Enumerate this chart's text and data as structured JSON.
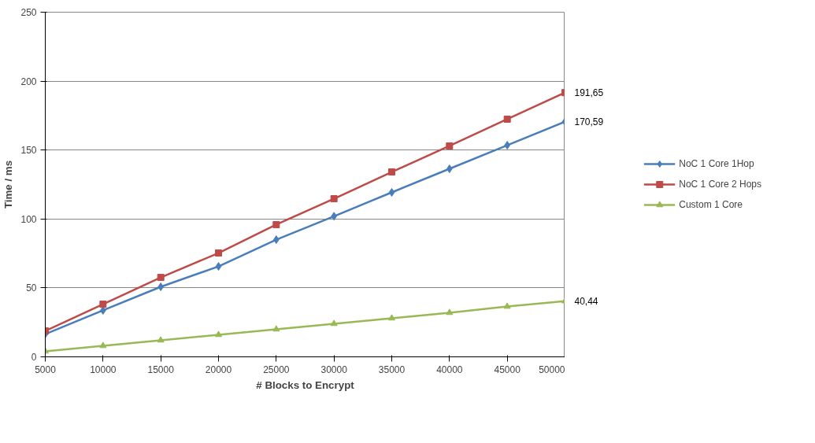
{
  "chart_data": {
    "type": "line",
    "xlabel": "# Blocks to Encrypt",
    "ylabel": "Time / ms",
    "x": [
      5000,
      10000,
      15000,
      20000,
      25000,
      30000,
      35000,
      40000,
      45000,
      50000
    ],
    "xlim": [
      5000,
      50000
    ],
    "xticks": [
      5000,
      10000,
      15000,
      20000,
      25000,
      30000,
      35000,
      40000,
      45000,
      50000
    ],
    "ylim": [
      0,
      250
    ],
    "yticks": [
      0,
      50,
      100,
      150,
      200,
      250
    ],
    "grid": "y",
    "legend": "right",
    "series": [
      {
        "name": "NoC 1 Core 1Hop",
        "color": "#4a7ebb",
        "marker": "diamond",
        "values": [
          16.5,
          33.7,
          50.8,
          65.6,
          85,
          102,
          119.3,
          136.4,
          153.5,
          170.59
        ],
        "value_labels": [
          null,
          null,
          null,
          null,
          null,
          null,
          null,
          null,
          null,
          "170,59"
        ]
      },
      {
        "name": "NoC 1 Core 2 Hops",
        "color": "#be4b48",
        "marker": "square",
        "values": [
          18.8,
          38.2,
          57.6,
          75.3,
          95.9,
          114.7,
          134.1,
          153,
          172.4,
          191.65
        ],
        "value_labels": [
          null,
          null,
          null,
          null,
          null,
          null,
          null,
          null,
          null,
          "191,65"
        ]
      },
      {
        "name": "Custom 1 Core",
        "color": "#98b954",
        "marker": "triangle",
        "values": [
          4,
          8,
          12,
          16,
          20,
          24,
          28,
          32,
          36.5,
          40.44
        ],
        "value_labels": [
          null,
          null,
          null,
          null,
          null,
          null,
          null,
          null,
          null,
          "40,44"
        ]
      }
    ]
  }
}
